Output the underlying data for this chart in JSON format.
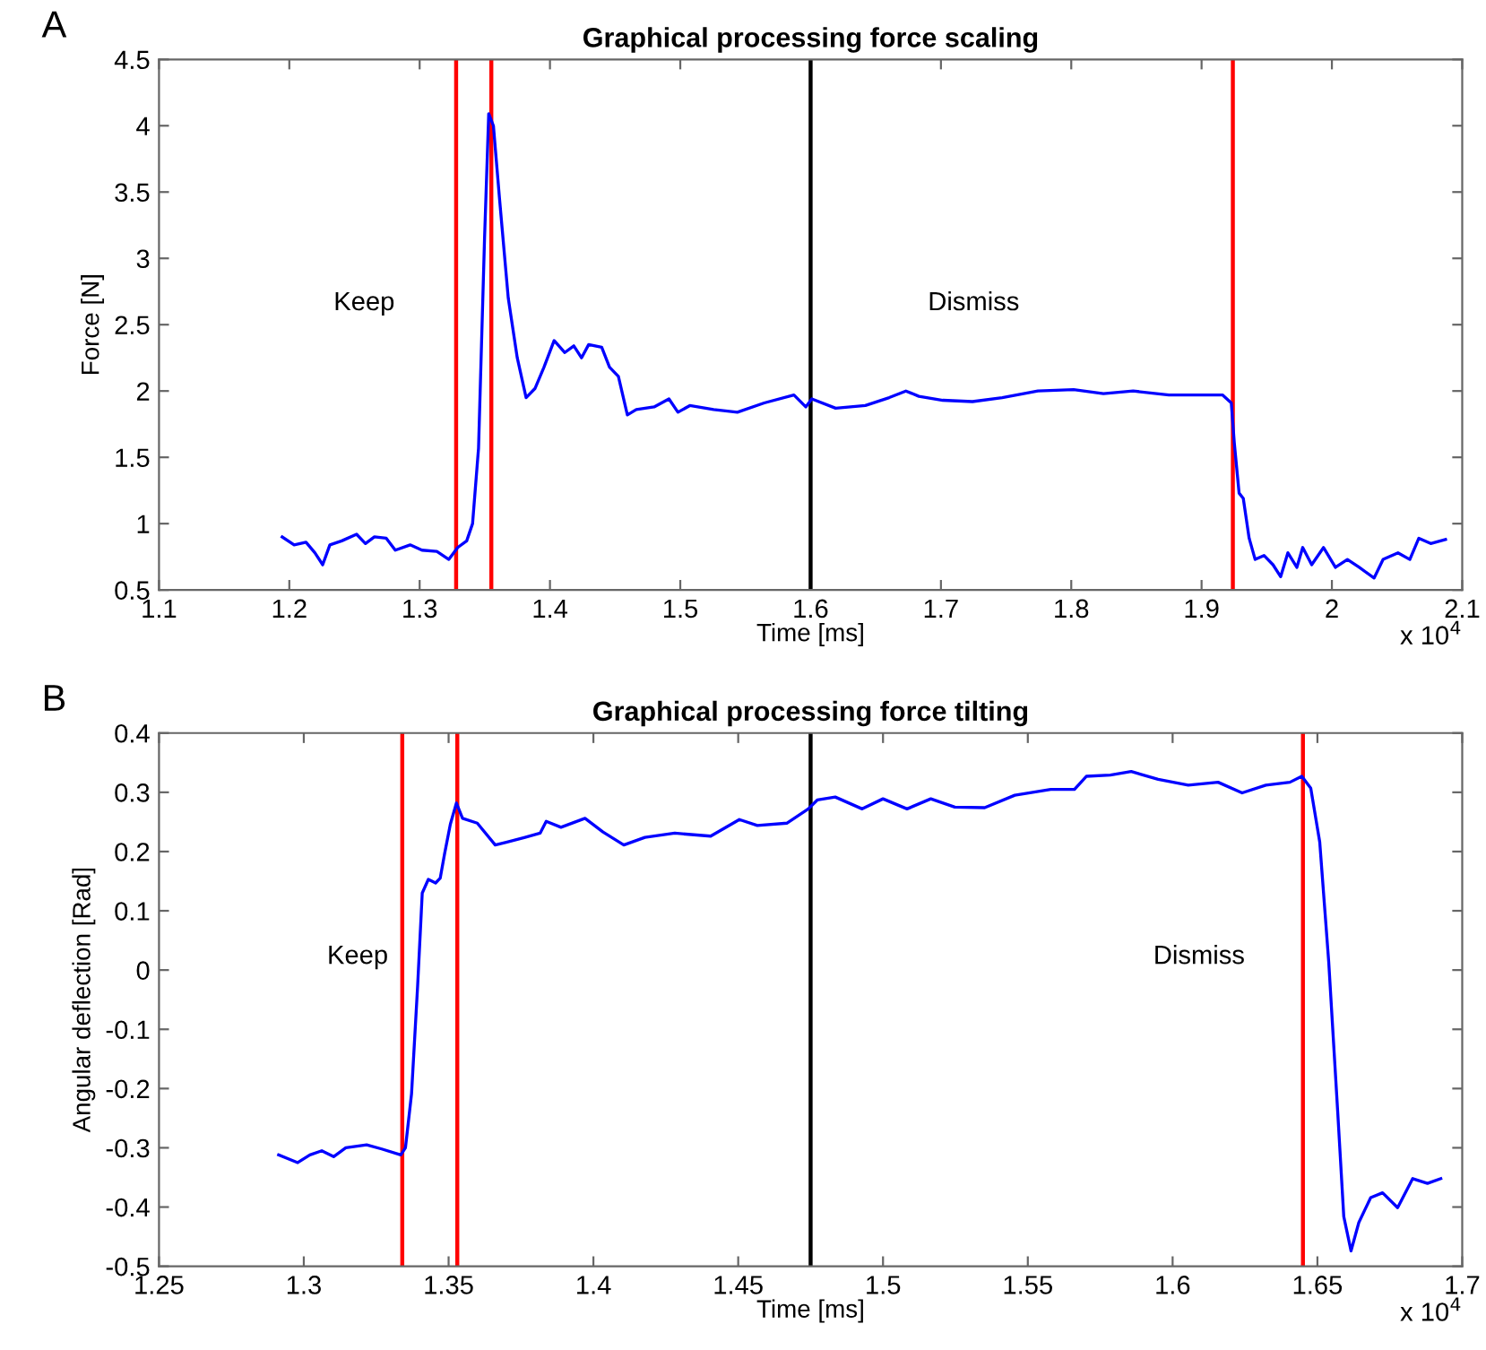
{
  "chart_data": [
    {
      "type": "line",
      "title": "Graphical processing force scaling",
      "xlabel": "Time [ms]",
      "ylabel": "Force [N]",
      "annotations": [
        "A",
        "Keep",
        "Dismiss",
        "x 10$^{4}$"
      ],
      "xlim": [
        1.1,
        2.1
      ],
      "ylim": [
        0.5,
        4.5
      ],
      "xticks": [
        1.1,
        1.2,
        1.3,
        1.4,
        1.5,
        1.6,
        1.7,
        1.8,
        1.9,
        2,
        2.1
      ],
      "yticks": [
        0.5,
        1,
        1.5,
        2,
        2.5,
        3,
        3.5,
        4,
        4.5
      ],
      "grid": false,
      "legend": false,
      "ref_lines": [
        {
          "axis": "x",
          "value": 1.328,
          "color": "#ff0000"
        },
        {
          "axis": "x",
          "value": 1.355,
          "color": "#ff0000"
        },
        {
          "axis": "x",
          "value": 1.6,
          "color": "#000000"
        },
        {
          "axis": "x",
          "value": 1.924,
          "color": "#ff0000"
        }
      ],
      "series": [
        {
          "color": "#0000ff",
          "x": [
            1.1945,
            1.2037,
            1.2128,
            1.2196,
            1.2256,
            1.2311,
            1.2402,
            1.2516,
            1.2584,
            1.2653,
            1.2744,
            1.2813,
            1.2927,
            1.3018,
            1.3132,
            1.3224,
            1.3292,
            1.3361,
            1.3406,
            1.3452,
            1.3498,
            1.353,
            1.3566,
            1.3612,
            1.368,
            1.3749,
            1.3817,
            1.3886,
            1.3954,
            1.4032,
            1.4114,
            1.4183,
            1.4242,
            1.4297,
            1.4397,
            1.4457,
            1.4525,
            1.4594,
            1.4662,
            1.4799,
            1.4913,
            1.4982,
            1.5073,
            1.5256,
            1.5438,
            1.5644,
            1.5872,
            1.5963,
            1.6009,
            1.6192,
            1.642,
            1.6603,
            1.6731,
            1.6831,
            1.7014,
            1.7242,
            1.747,
            1.7744,
            1.8018,
            1.8247,
            1.8475,
            1.8749,
            1.9023,
            1.916,
            1.9228,
            1.9251,
            1.9288,
            1.932,
            1.9365,
            1.9411,
            1.9479,
            1.9548,
            1.9607,
            1.9662,
            1.9731,
            1.9776,
            1.9845,
            1.9936,
            2.0027,
            2.0119,
            2.021,
            2.0324,
            2.0393,
            2.0507,
            2.0598,
            2.0667,
            2.0758,
            2.0872
          ],
          "values": [
            0.9,
            0.84,
            0.86,
            0.78,
            0.69,
            0.84,
            0.87,
            0.92,
            0.85,
            0.9,
            0.89,
            0.8,
            0.84,
            0.8,
            0.79,
            0.73,
            0.82,
            0.87,
            1.0,
            1.57,
            3.15,
            4.09,
            4.0,
            3.46,
            2.7,
            2.25,
            1.95,
            2.02,
            2.18,
            2.38,
            2.29,
            2.34,
            2.25,
            2.35,
            2.33,
            2.18,
            2.11,
            1.82,
            1.86,
            1.88,
            1.94,
            1.84,
            1.89,
            1.86,
            1.84,
            1.91,
            1.97,
            1.88,
            1.94,
            1.87,
            1.89,
            1.95,
            2.0,
            1.96,
            1.93,
            1.92,
            1.95,
            2.0,
            2.01,
            1.98,
            2.0,
            1.97,
            1.97,
            1.97,
            1.91,
            1.61,
            1.23,
            1.19,
            0.89,
            0.73,
            0.76,
            0.69,
            0.6,
            0.78,
            0.67,
            0.82,
            0.69,
            0.82,
            0.67,
            0.73,
            0.67,
            0.59,
            0.73,
            0.78,
            0.73,
            0.89,
            0.85,
            0.88
          ]
        }
      ]
    },
    {
      "type": "line",
      "title": "Graphical processing force tilting",
      "xlabel": "Time [ms]",
      "ylabel": "Angular deflection [Rad]",
      "annotations": [
        "B",
        "Keep",
        "Dismiss",
        "x 10$^{4}$"
      ],
      "xlim": [
        1.25,
        1.7
      ],
      "ylim": [
        -0.5,
        0.4
      ],
      "xticks": [
        1.25,
        1.3,
        1.35,
        1.4,
        1.45,
        1.5,
        1.55,
        1.6,
        1.65,
        1.7
      ],
      "yticks": [
        -0.5,
        -0.4,
        -0.3,
        -0.2,
        -0.1,
        0,
        0.1,
        0.2,
        0.3,
        0.4
      ],
      "grid": false,
      "legend": false,
      "ref_lines": [
        {
          "axis": "x",
          "value": 1.334,
          "color": "#ff0000"
        },
        {
          "axis": "x",
          "value": 1.353,
          "color": "#ff0000"
        },
        {
          "axis": "x",
          "value": 1.475,
          "color": "#000000"
        },
        {
          "axis": "x",
          "value": 1.645,
          "color": "#ff0000"
        }
      ],
      "series": [
        {
          "color": "#0000ff",
          "x": [
            1.2913,
            1.2979,
            1.3021,
            1.3062,
            1.3103,
            1.3145,
            1.3217,
            1.3269,
            1.3335,
            1.3351,
            1.3372,
            1.3393,
            1.3409,
            1.343,
            1.3455,
            1.3471,
            1.3486,
            1.3506,
            1.3527,
            1.3548,
            1.3599,
            1.3661,
            1.3702,
            1.3764,
            1.3816,
            1.3837,
            1.3888,
            1.3971,
            1.4033,
            1.4105,
            1.4178,
            1.4281,
            1.4405,
            1.4504,
            1.4566,
            1.4669,
            1.4742,
            1.4773,
            1.4835,
            1.4928,
            1.5,
            1.5083,
            1.5165,
            1.5248,
            1.5351,
            1.5455,
            1.5579,
            1.5661,
            1.5702,
            1.5785,
            1.5857,
            1.595,
            1.6054,
            1.6157,
            1.624,
            1.6322,
            1.6405,
            1.6446,
            1.6477,
            1.6508,
            1.6539,
            1.657,
            1.6591,
            1.6616,
            1.6643,
            1.6684,
            1.6725,
            1.6777,
            1.6829,
            1.688,
            1.6926
          ],
          "values": [
            -0.312,
            -0.325,
            -0.312,
            -0.305,
            -0.315,
            -0.3,
            -0.295,
            -0.302,
            -0.312,
            -0.3,
            -0.209,
            -0.027,
            0.13,
            0.153,
            0.147,
            0.155,
            0.196,
            0.246,
            0.282,
            0.256,
            0.248,
            0.211,
            0.216,
            0.224,
            0.231,
            0.251,
            0.241,
            0.256,
            0.233,
            0.211,
            0.224,
            0.231,
            0.226,
            0.254,
            0.244,
            0.248,
            0.272,
            0.287,
            0.292,
            0.272,
            0.289,
            0.272,
            0.289,
            0.275,
            0.274,
            0.295,
            0.305,
            0.305,
            0.327,
            0.329,
            0.335,
            0.322,
            0.312,
            0.317,
            0.299,
            0.312,
            0.317,
            0.327,
            0.307,
            0.216,
            0.014,
            -0.239,
            -0.416,
            -0.474,
            -0.426,
            -0.384,
            -0.376,
            -0.401,
            -0.352,
            -0.36,
            -0.352
          ]
        }
      ]
    }
  ]
}
